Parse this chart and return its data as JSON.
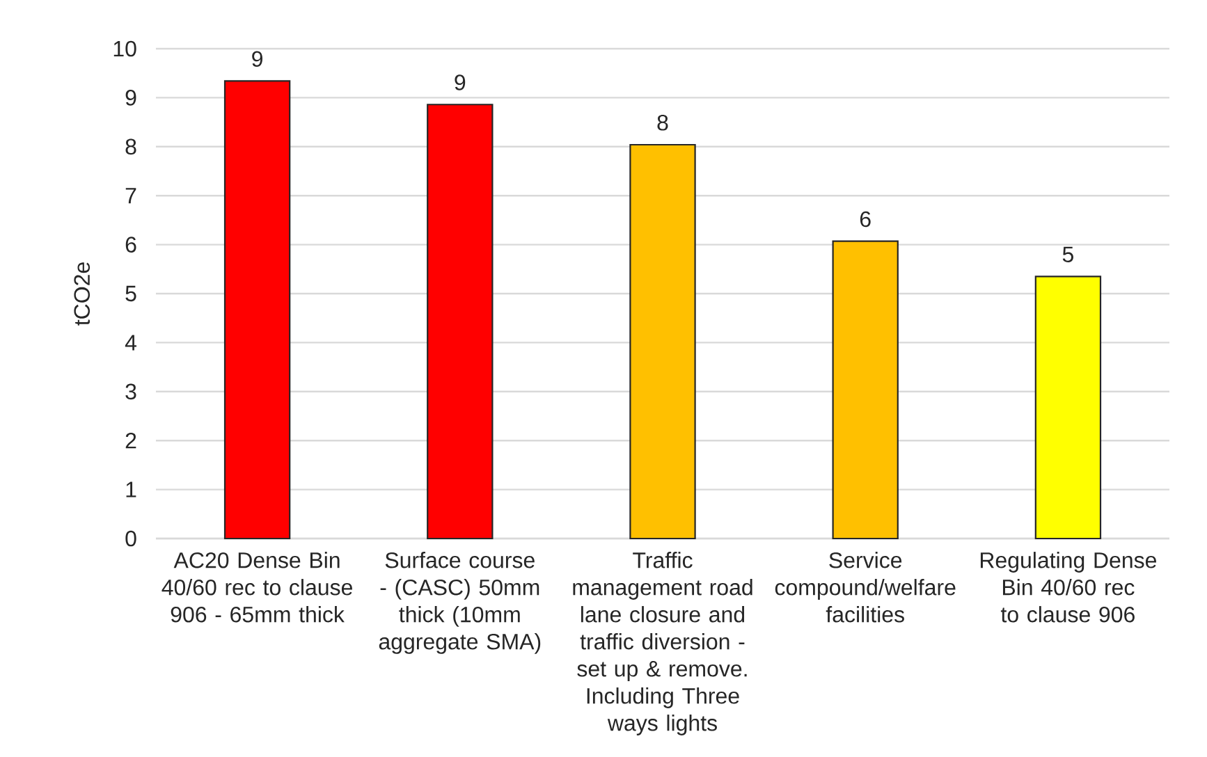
{
  "chart_data": {
    "type": "bar",
    "categories": [
      "AC20 Dense Bin 40/60 rec to clause 906 - 65mm thick",
      "Surface course - (CASC) 50mm thick (10mm aggregate SMA)",
      "Traffic management road lane closure and traffic diversion - set up & remove. Including Three ways lights",
      "Service compound/welfare facilities",
      "Regulating Dense Bin 40/60 rec to clause 906"
    ],
    "values": [
      9.34,
      8.86,
      8.04,
      6.07,
      5.35
    ],
    "colors": [
      "#ff0000",
      "#ff0000",
      "#ffc000",
      "#ffc000",
      "#ffff00"
    ],
    "value_labels": [
      "9",
      "9",
      "8",
      "6",
      "5"
    ],
    "ylabel": "tCO2e",
    "ylim": [
      0,
      10
    ],
    "yticks": [
      0,
      1,
      2,
      3,
      4,
      5,
      6,
      7,
      8,
      9,
      10
    ],
    "grid": "y"
  }
}
